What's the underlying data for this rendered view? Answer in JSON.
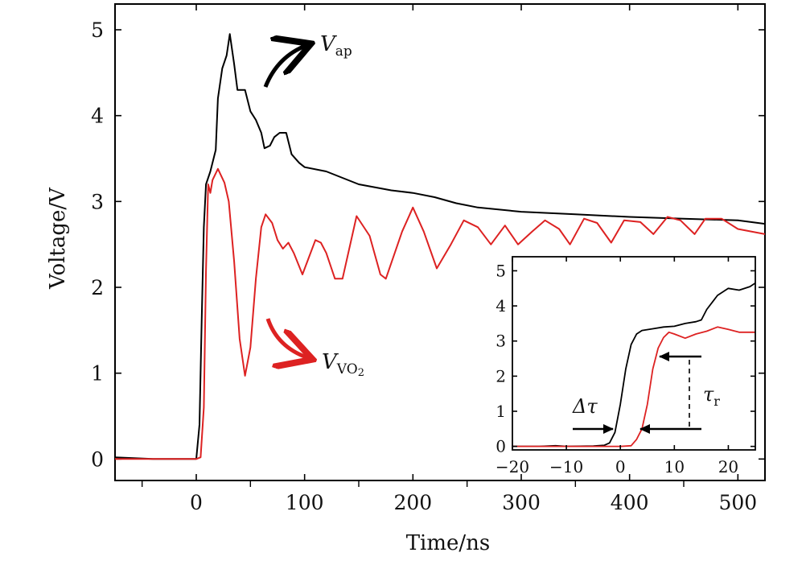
{
  "chart_data": [
    {
      "type": "line",
      "title": "",
      "xlabel": "Time/ns",
      "ylabel": "Voltage/V",
      "xlim": [
        -75,
        525
      ],
      "ylim": [
        -0.25,
        5.3
      ],
      "xticks": [
        0,
        100,
        200,
        300,
        400,
        500
      ],
      "xtick_labels": [
        "0",
        "100",
        "200",
        "300",
        "400",
        "500"
      ],
      "yticks": [
        0,
        1,
        2,
        3,
        4,
        5
      ],
      "ytick_labels": [
        "0",
        "1",
        "2",
        "3",
        "4",
        "5"
      ],
      "grid": false,
      "series": [
        {
          "name": "V_ap",
          "color": "#000000",
          "points": [
            [
              -75,
              0.02
            ],
            [
              -40,
              0.0
            ],
            [
              -10,
              0.0
            ],
            [
              0,
              0.0
            ],
            [
              3,
              0.4
            ],
            [
              5,
              1.6
            ],
            [
              7,
              2.7
            ],
            [
              9,
              3.2
            ],
            [
              13,
              3.35
            ],
            [
              18,
              3.6
            ],
            [
              20,
              4.2
            ],
            [
              24,
              4.55
            ],
            [
              28,
              4.7
            ],
            [
              31,
              4.95
            ],
            [
              35,
              4.6
            ],
            [
              38,
              4.3
            ],
            [
              45,
              4.3
            ],
            [
              50,
              4.05
            ],
            [
              55,
              3.95
            ],
            [
              60,
              3.8
            ],
            [
              63,
              3.62
            ],
            [
              68,
              3.65
            ],
            [
              72,
              3.75
            ],
            [
              77,
              3.8
            ],
            [
              83,
              3.8
            ],
            [
              88,
              3.55
            ],
            [
              95,
              3.45
            ],
            [
              100,
              3.4
            ],
            [
              120,
              3.35
            ],
            [
              150,
              3.2
            ],
            [
              180,
              3.13
            ],
            [
              200,
              3.1
            ],
            [
              220,
              3.05
            ],
            [
              240,
              2.98
            ],
            [
              260,
              2.93
            ],
            [
              300,
              2.88
            ],
            [
              350,
              2.85
            ],
            [
              400,
              2.82
            ],
            [
              450,
              2.8
            ],
            [
              500,
              2.78
            ],
            [
              525,
              2.74
            ]
          ]
        },
        {
          "name": "V_VO2",
          "color": "#dd2222",
          "points": [
            [
              -75,
              0.0
            ],
            [
              -40,
              0.0
            ],
            [
              0,
              0.0
            ],
            [
              4,
              0.02
            ],
            [
              7,
              0.6
            ],
            [
              9,
              2.2
            ],
            [
              11,
              3.2
            ],
            [
              13,
              3.1
            ],
            [
              15,
              3.25
            ],
            [
              20,
              3.38
            ],
            [
              26,
              3.22
            ],
            [
              30,
              3.0
            ],
            [
              35,
              2.3
            ],
            [
              40,
              1.4
            ],
            [
              45,
              0.97
            ],
            [
              50,
              1.3
            ],
            [
              55,
              2.1
            ],
            [
              60,
              2.7
            ],
            [
              64,
              2.85
            ],
            [
              70,
              2.75
            ],
            [
              75,
              2.55
            ],
            [
              80,
              2.45
            ],
            [
              85,
              2.52
            ],
            [
              90,
              2.4
            ],
            [
              98,
              2.15
            ],
            [
              110,
              2.55
            ],
            [
              115,
              2.52
            ],
            [
              120,
              2.4
            ],
            [
              128,
              2.1
            ],
            [
              135,
              2.1
            ],
            [
              148,
              2.83
            ],
            [
              160,
              2.6
            ],
            [
              170,
              2.15
            ],
            [
              175,
              2.1
            ],
            [
              190,
              2.65
            ],
            [
              200,
              2.93
            ],
            [
              210,
              2.65
            ],
            [
              222,
              2.22
            ],
            [
              235,
              2.5
            ],
            [
              247,
              2.78
            ],
            [
              260,
              2.7
            ],
            [
              272,
              2.5
            ],
            [
              285,
              2.72
            ],
            [
              297,
              2.5
            ],
            [
              310,
              2.65
            ],
            [
              322,
              2.78
            ],
            [
              335,
              2.68
            ],
            [
              345,
              2.5
            ],
            [
              358,
              2.8
            ],
            [
              370,
              2.75
            ],
            [
              383,
              2.52
            ],
            [
              395,
              2.78
            ],
            [
              410,
              2.76
            ],
            [
              422,
              2.62
            ],
            [
              435,
              2.82
            ],
            [
              447,
              2.78
            ],
            [
              460,
              2.62
            ],
            [
              470,
              2.8
            ],
            [
              485,
              2.8
            ],
            [
              500,
              2.68
            ],
            [
              525,
              2.62
            ]
          ]
        }
      ],
      "annotations": [
        {
          "label_main": "V",
          "label_sub": "ap",
          "color": "#000000"
        },
        {
          "label_main": "V",
          "label_sub": "VO",
          "label_subsub": "2",
          "color": "#dd2222"
        }
      ]
    },
    {
      "type": "line",
      "title": "",
      "xlabel": "",
      "ylabel": "",
      "xlim": [
        -20,
        25
      ],
      "ylim": [
        -0.1,
        5.4
      ],
      "xticks": [
        -20,
        -10,
        0,
        10,
        20
      ],
      "xtick_labels": [
        "−20",
        "−10",
        "0",
        "10",
        "20"
      ],
      "yticks": [
        0,
        1,
        2,
        3,
        4,
        5
      ],
      "ytick_labels": [
        "0",
        "1",
        "2",
        "3",
        "4",
        "5"
      ],
      "grid": false,
      "series": [
        {
          "name": "V_ap",
          "color": "#000000",
          "points": [
            [
              -20,
              0.0
            ],
            [
              -15,
              0.0
            ],
            [
              -12,
              0.02
            ],
            [
              -10,
              0.0
            ],
            [
              -5,
              0.01
            ],
            [
              -3,
              0.03
            ],
            [
              -2,
              0.1
            ],
            [
              -1,
              0.4
            ],
            [
              0,
              1.2
            ],
            [
              1,
              2.2
            ],
            [
              2,
              2.9
            ],
            [
              3,
              3.2
            ],
            [
              4,
              3.3
            ],
            [
              6,
              3.35
            ],
            [
              8,
              3.4
            ],
            [
              10,
              3.42
            ],
            [
              12,
              3.5
            ],
            [
              14,
              3.55
            ],
            [
              15,
              3.6
            ],
            [
              16,
              3.9
            ],
            [
              18,
              4.3
            ],
            [
              20,
              4.5
            ],
            [
              22,
              4.45
            ],
            [
              24,
              4.55
            ],
            [
              25,
              4.65
            ]
          ]
        },
        {
          "name": "V_VO2",
          "color": "#dd2222",
          "points": [
            [
              -20,
              0.0
            ],
            [
              -10,
              0.0
            ],
            [
              0,
              0.0
            ],
            [
              2,
              0.02
            ],
            [
              3,
              0.2
            ],
            [
              4,
              0.5
            ],
            [
              5,
              1.2
            ],
            [
              6,
              2.2
            ],
            [
              7,
              2.8
            ],
            [
              8,
              3.1
            ],
            [
              9,
              3.25
            ],
            [
              10,
              3.2
            ],
            [
              12,
              3.08
            ],
            [
              14,
              3.2
            ],
            [
              16,
              3.28
            ],
            [
              18,
              3.4
            ],
            [
              20,
              3.33
            ],
            [
              22,
              3.25
            ],
            [
              25,
              3.25
            ]
          ]
        }
      ],
      "annotations": [
        {
          "label_main": "Δτ"
        },
        {
          "label_main": "τ",
          "label_sub": "r"
        }
      ]
    }
  ]
}
